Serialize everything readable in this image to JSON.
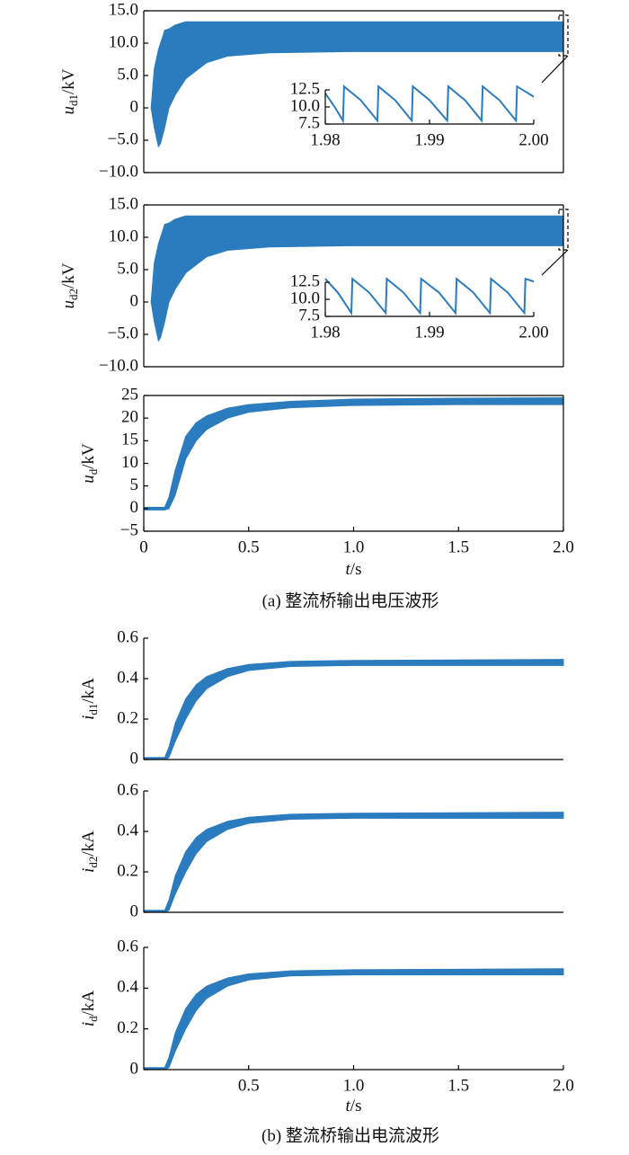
{
  "chart_data": [
    {
      "type": "range",
      "color": "#2b7bbf",
      "ylabel": {
        "var": "u",
        "sub": "d1",
        "unit": "/kV"
      },
      "xlim": [
        0,
        2
      ],
      "ylim": [
        -10,
        15
      ],
      "yticks": [
        {
          "value": 15,
          "label": "15.0"
        },
        {
          "value": 10,
          "label": "10.0"
        },
        {
          "value": 5,
          "label": "5.0"
        },
        0,
        {
          "value": -5,
          "label": "−5.0"
        },
        {
          "value": -10,
          "label": "−10.0"
        }
      ],
      "x": [
        0.035,
        0.05,
        0.07,
        0.08,
        0.1,
        0.12,
        0.15,
        0.2,
        0.3,
        0.4,
        0.6,
        1.0,
        2.0
      ],
      "high": [
        0,
        6,
        9,
        10,
        12,
        12.2,
        12.8,
        13.3,
        13.3,
        13.3,
        13.3,
        13.3,
        13.3
      ],
      "low": [
        0,
        -3,
        -6,
        -5.5,
        -3,
        0,
        2,
        4.5,
        7,
        8,
        8.5,
        8.7,
        8.7
      ]
    },
    {
      "type": "line",
      "color": "#2b7bbf",
      "xlim": [
        1.98,
        2.0
      ],
      "ylim": [
        7.5,
        12.5
      ],
      "xticks": [
        1.98,
        1.99,
        {
          "value": 2.0,
          "label": "2.00"
        }
      ],
      "yticks": [
        12.5,
        {
          "value": 10,
          "label": "10.0"
        },
        7.5
      ],
      "x": [
        1.98,
        1.9809,
        1.9817,
        1.9818,
        1.9834,
        1.985,
        1.9851,
        1.9867,
        1.9883,
        1.9884,
        1.99,
        1.9917,
        1.9918,
        1.9934,
        1.995,
        1.9951,
        1.9967,
        1.9983,
        1.9984,
        2.0
      ],
      "values": [
        12.0,
        10.0,
        8.0,
        13.0,
        11.0,
        8.0,
        13.0,
        11.0,
        8.0,
        13.0,
        11.0,
        8.0,
        13.0,
        11.0,
        8.0,
        13.0,
        11.0,
        8.0,
        13.0,
        11.5
      ]
    },
    {
      "type": "range",
      "color": "#2b7bbf",
      "ylabel": {
        "var": "u",
        "sub": "d2",
        "unit": "/kV"
      },
      "xlim": [
        0,
        2
      ],
      "ylim": [
        -10,
        15
      ],
      "yticks": [
        {
          "value": 15,
          "label": "15.0"
        },
        {
          "value": 10,
          "label": "10.0"
        },
        {
          "value": 5,
          "label": "5.0"
        },
        0,
        {
          "value": -5,
          "label": "−5.0"
        },
        {
          "value": -10,
          "label": "−10.0"
        }
      ],
      "x": [
        0.035,
        0.05,
        0.07,
        0.08,
        0.1,
        0.12,
        0.15,
        0.2,
        0.3,
        0.4,
        0.6,
        1.0,
        2.0
      ],
      "high": [
        0,
        6,
        9,
        10,
        12,
        12.2,
        12.8,
        13.3,
        13.3,
        13.3,
        13.3,
        13.3,
        13.3
      ],
      "low": [
        0,
        -3,
        -6,
        -5.5,
        -3,
        0,
        2,
        4.5,
        7,
        8,
        8.5,
        8.7,
        8.7
      ]
    },
    {
      "type": "line",
      "color": "#2b7bbf",
      "xlim": [
        1.98,
        2.0
      ],
      "ylim": [
        7.5,
        12.5
      ],
      "xticks": [
        1.98,
        1.99,
        {
          "value": 2.0,
          "label": "2.00"
        }
      ],
      "yticks": [
        12.5,
        {
          "value": 10,
          "label": "10.0"
        },
        7.5
      ],
      "x": [
        1.98,
        1.9812,
        1.9825,
        1.9826,
        1.9842,
        1.9858,
        1.9859,
        1.9875,
        1.9891,
        1.9892,
        1.9909,
        1.9925,
        1.9926,
        1.9942,
        1.9958,
        1.9959,
        1.9975,
        1.9991,
        1.9992,
        2.0
      ],
      "values": [
        13.0,
        11.0,
        8.0,
        13.0,
        11.0,
        8.0,
        13.0,
        11.0,
        8.0,
        13.0,
        11.0,
        8.0,
        13.0,
        11.0,
        8.0,
        13.0,
        11.0,
        8.0,
        13.0,
        12.6
      ]
    },
    {
      "type": "range",
      "color": "#2b7bbf",
      "ylabel": {
        "var": "u",
        "sub": "d",
        "unit": "/kV"
      },
      "xlabel": {
        "var": "t",
        "unit": "/s"
      },
      "xlim": [
        0,
        2
      ],
      "ylim": [
        -5,
        25
      ],
      "xticks": [
        0,
        0.5,
        {
          "value": 1.0,
          "label": "1.0"
        },
        1.5,
        {
          "value": 2.0,
          "label": "2.0"
        }
      ],
      "yticks": [
        25,
        20,
        15,
        10,
        5,
        0,
        {
          "value": -5,
          "label": "−5"
        }
      ],
      "x": [
        0.0,
        0.1,
        0.12,
        0.15,
        0.2,
        0.25,
        0.3,
        0.4,
        0.5,
        0.7,
        1.0,
        1.5,
        2.0
      ],
      "high": [
        0.3,
        0.3,
        2.5,
        8.5,
        16,
        19,
        20.5,
        22.2,
        23,
        23.7,
        24.2,
        24.4,
        24.5
      ],
      "low": [
        -0.3,
        -0.3,
        0,
        3,
        11,
        15,
        17.5,
        20,
        21.3,
        22.3,
        22.8,
        23,
        23
      ]
    },
    {
      "type": "range",
      "color": "#2b7bbf",
      "ylabel": {
        "var": "i",
        "sub": "d1",
        "unit": "/kA"
      },
      "xlim": [
        0,
        2
      ],
      "ylim": [
        0,
        0.6
      ],
      "yticks": [
        0.6,
        0.4,
        0.2,
        0
      ],
      "x": [
        0.0,
        0.1,
        0.12,
        0.15,
        0.2,
        0.25,
        0.3,
        0.4,
        0.5,
        0.7,
        1.0,
        2.0
      ],
      "high": [
        0.01,
        0.01,
        0.06,
        0.18,
        0.3,
        0.37,
        0.41,
        0.45,
        0.47,
        0.485,
        0.49,
        0.495
      ],
      "low": [
        0,
        0,
        0.01,
        0.09,
        0.2,
        0.29,
        0.35,
        0.41,
        0.44,
        0.46,
        0.465,
        0.465
      ]
    },
    {
      "type": "range",
      "color": "#2b7bbf",
      "ylabel": {
        "var": "i",
        "sub": "d2",
        "unit": "/kA"
      },
      "xlim": [
        0,
        2
      ],
      "ylim": [
        0,
        0.6
      ],
      "yticks": [
        0.6,
        0.4,
        0.2,
        0
      ],
      "x": [
        0.0,
        0.1,
        0.12,
        0.15,
        0.2,
        0.25,
        0.3,
        0.4,
        0.5,
        0.7,
        1.0,
        2.0
      ],
      "high": [
        0.01,
        0.01,
        0.06,
        0.18,
        0.3,
        0.37,
        0.41,
        0.45,
        0.47,
        0.485,
        0.49,
        0.495
      ],
      "low": [
        0,
        0,
        0.01,
        0.09,
        0.2,
        0.29,
        0.35,
        0.41,
        0.44,
        0.46,
        0.465,
        0.465
      ]
    },
    {
      "type": "range",
      "color": "#2b7bbf",
      "ylabel": {
        "var": "i",
        "sub": "d",
        "unit": "/kA"
      },
      "xlabel": {
        "var": "t",
        "unit": "/s"
      },
      "xlim": [
        0,
        2
      ],
      "ylim": [
        0,
        0.6
      ],
      "xticks": [
        0.5,
        {
          "value": 1.0,
          "label": "1.0"
        },
        1.5,
        {
          "value": 2.0,
          "label": "2.0"
        }
      ],
      "yticks": [
        0.6,
        0.4,
        0.2,
        0
      ],
      "x": [
        0.0,
        0.1,
        0.12,
        0.15,
        0.2,
        0.25,
        0.3,
        0.4,
        0.5,
        0.7,
        1.0,
        2.0
      ],
      "high": [
        0.01,
        0.01,
        0.06,
        0.18,
        0.3,
        0.37,
        0.41,
        0.45,
        0.47,
        0.485,
        0.49,
        0.495
      ],
      "low": [
        0,
        0,
        0.01,
        0.09,
        0.2,
        0.29,
        0.35,
        0.41,
        0.44,
        0.46,
        0.465,
        0.465
      ]
    }
  ],
  "captions": [
    "(a)  整流桥输出电压波形",
    "(b)  整流桥输出电流波形"
  ]
}
